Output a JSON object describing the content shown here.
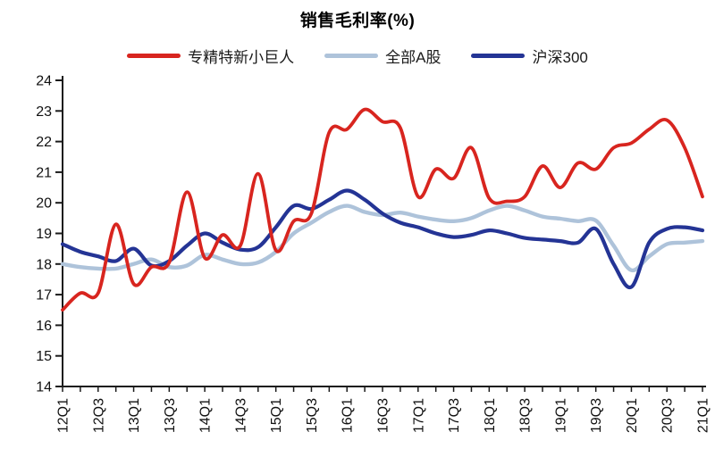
{
  "title": "销售毛利率(%)",
  "colors": {
    "red": "#d8251f",
    "light_blue": "#aec3da",
    "dark_blue": "#243495",
    "axis": "#1a1a1a",
    "tick_text": "#111111"
  },
  "legend": {
    "items": [
      {
        "label": "专精特新小巨人",
        "color": "#d8251f"
      },
      {
        "label": "全部A股",
        "color": "#aec3da"
      },
      {
        "label": "沪深300",
        "color": "#243495"
      }
    ]
  },
  "chart_data": {
    "type": "line",
    "title": "销售毛利率(%)",
    "xlabel": "",
    "ylabel": "",
    "ylim": [
      14,
      24
    ],
    "y_ticks": [
      14,
      15,
      16,
      17,
      18,
      19,
      20,
      21,
      22,
      23,
      24
    ],
    "grid": false,
    "legend_position": "top",
    "smoothing": "spline",
    "categories": [
      "12Q1",
      "12Q2",
      "12Q3",
      "12Q4",
      "13Q1",
      "13Q2",
      "13Q3",
      "13Q4",
      "14Q1",
      "14Q2",
      "14Q3",
      "14Q4",
      "15Q1",
      "15Q2",
      "15Q3",
      "15Q4",
      "16Q1",
      "16Q2",
      "16Q3",
      "16Q4",
      "17Q1",
      "17Q2",
      "17Q3",
      "17Q4",
      "18Q1",
      "18Q2",
      "18Q3",
      "18Q4",
      "19Q1",
      "19Q2",
      "19Q3",
      "19Q4",
      "20Q1",
      "20Q2",
      "20Q3",
      "20Q4",
      "21Q1"
    ],
    "x_tick_labels": [
      "12Q1",
      "12Q3",
      "13Q1",
      "13Q3",
      "14Q1",
      "14Q3",
      "15Q1",
      "15Q3",
      "16Q1",
      "16Q3",
      "17Q1",
      "17Q3",
      "18Q1",
      "18Q3",
      "19Q1",
      "19Q3",
      "20Q1",
      "20Q3",
      "21Q1"
    ],
    "series": [
      {
        "name": "专精特新小巨人",
        "color": "#d8251f",
        "width": 3.8,
        "z_index": 2,
        "values": [
          16.5,
          17.05,
          17.05,
          19.3,
          17.35,
          17.9,
          18.05,
          20.35,
          18.2,
          18.95,
          18.6,
          20.95,
          18.45,
          19.4,
          19.65,
          22.3,
          22.4,
          23.05,
          22.65,
          22.45,
          20.2,
          21.1,
          20.8,
          21.8,
          20.15,
          20.05,
          20.2,
          21.2,
          20.5,
          21.3,
          21.1,
          21.8,
          21.95,
          22.4,
          22.7,
          21.8,
          20.2
        ]
      },
      {
        "name": "全部A股",
        "color": "#aec3da",
        "width": 4.4,
        "z_index": 0,
        "values": [
          18.0,
          17.9,
          17.85,
          17.85,
          18.0,
          18.15,
          17.9,
          17.95,
          18.3,
          18.15,
          18.0,
          18.05,
          18.4,
          19.0,
          19.35,
          19.7,
          19.9,
          19.7,
          19.6,
          19.68,
          19.55,
          19.45,
          19.4,
          19.5,
          19.75,
          19.9,
          19.75,
          19.55,
          19.48,
          19.4,
          19.42,
          18.6,
          17.8,
          18.25,
          18.65,
          18.7,
          18.75
        ]
      },
      {
        "name": "沪深300",
        "color": "#243495",
        "width": 4.2,
        "z_index": 1,
        "values": [
          18.65,
          18.4,
          18.25,
          18.1,
          18.5,
          17.95,
          18.1,
          18.6,
          19.0,
          18.7,
          18.47,
          18.55,
          19.2,
          19.9,
          19.8,
          20.1,
          20.4,
          20.1,
          19.65,
          19.35,
          19.2,
          19.0,
          18.88,
          18.95,
          19.1,
          19.0,
          18.85,
          18.8,
          18.75,
          18.7,
          19.15,
          18.0,
          17.25,
          18.7,
          19.15,
          19.2,
          19.1
        ]
      }
    ]
  }
}
